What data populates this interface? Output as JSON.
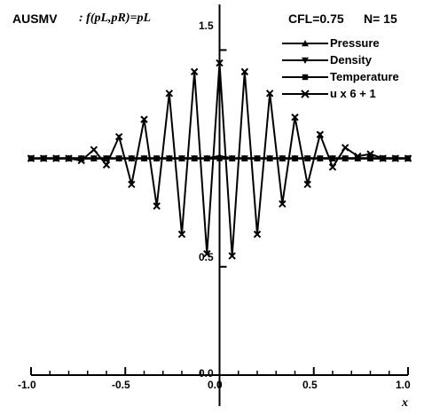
{
  "header": {
    "scheme": "AUSMV",
    "flux_formula": ": f(pL,pR)=pL",
    "cfl": "CFL=0.75",
    "n": "N= 15"
  },
  "chart_data": {
    "type": "line",
    "xlabel": "x",
    "ylabel": "",
    "xlim": [
      -1.0,
      1.0
    ],
    "ylim": [
      0.0,
      1.6
    ],
    "x_ticks": [
      "-1.0",
      "-0.5",
      "0.0",
      "0.5",
      "1.0"
    ],
    "y_ticks": [
      "0.0",
      "0.5",
      "1.5"
    ],
    "legend": [
      "Pressure",
      "Density",
      "Temperature",
      "u  x 6 + 1"
    ],
    "legend_position": "top-right",
    "x": [
      -1.0,
      -0.9333,
      -0.8667,
      -0.8,
      -0.7333,
      -0.6667,
      -0.6,
      -0.5333,
      -0.4667,
      -0.4,
      -0.3333,
      -0.2667,
      -0.2,
      -0.1333,
      -0.0667,
      0.0,
      0.0667,
      0.1333,
      0.2,
      0.2667,
      0.3333,
      0.4,
      0.4667,
      0.5333,
      0.6,
      0.6667,
      0.7333,
      0.8,
      0.8667,
      0.9333,
      1.0
    ],
    "series": [
      {
        "name": "Pressure",
        "marker": "triangle-up",
        "values": [
          1.0,
          1.0,
          1.0,
          1.0,
          1.0,
          1.0,
          1.0,
          1.0,
          1.0,
          1.0,
          1.0,
          1.0,
          1.0,
          1.0,
          1.0,
          1.01,
          1.0,
          1.0,
          1.0,
          1.0,
          1.0,
          1.0,
          1.0,
          1.0,
          1.0,
          1.0,
          1.0,
          1.0,
          1.0,
          1.0,
          1.0
        ]
      },
      {
        "name": "Density",
        "marker": "triangle-down",
        "values": [
          1.0,
          1.0,
          1.0,
          1.0,
          1.0,
          1.0,
          1.0,
          1.0,
          1.0,
          1.0,
          1.0,
          1.0,
          1.0,
          1.0,
          1.0,
          1.0,
          1.0,
          1.0,
          1.0,
          1.0,
          1.0,
          1.0,
          1.0,
          1.0,
          1.0,
          1.0,
          1.0,
          1.0,
          1.0,
          1.0,
          1.0
        ]
      },
      {
        "name": "Temperature",
        "marker": "square",
        "values": [
          1.0,
          1.0,
          1.0,
          1.0,
          1.0,
          1.0,
          1.0,
          1.0,
          1.0,
          1.0,
          1.0,
          1.0,
          1.0,
          1.0,
          1.0,
          1.0,
          1.0,
          1.0,
          1.0,
          1.0,
          1.0,
          1.0,
          1.0,
          1.0,
          1.0,
          1.0,
          1.0,
          1.0,
          1.0,
          1.0,
          1.0
        ]
      },
      {
        "name": "u  x 6 + 1",
        "marker": "x",
        "values": [
          1.0,
          1.0,
          1.0,
          1.0,
          0.99,
          1.04,
          0.97,
          1.1,
          0.88,
          1.18,
          0.78,
          1.3,
          0.65,
          1.4,
          0.56,
          1.44,
          0.55,
          1.4,
          0.65,
          1.3,
          0.79,
          1.19,
          0.88,
          1.11,
          0.96,
          1.05,
          1.01,
          1.02,
          1.0,
          1.0,
          1.0
        ]
      }
    ]
  }
}
